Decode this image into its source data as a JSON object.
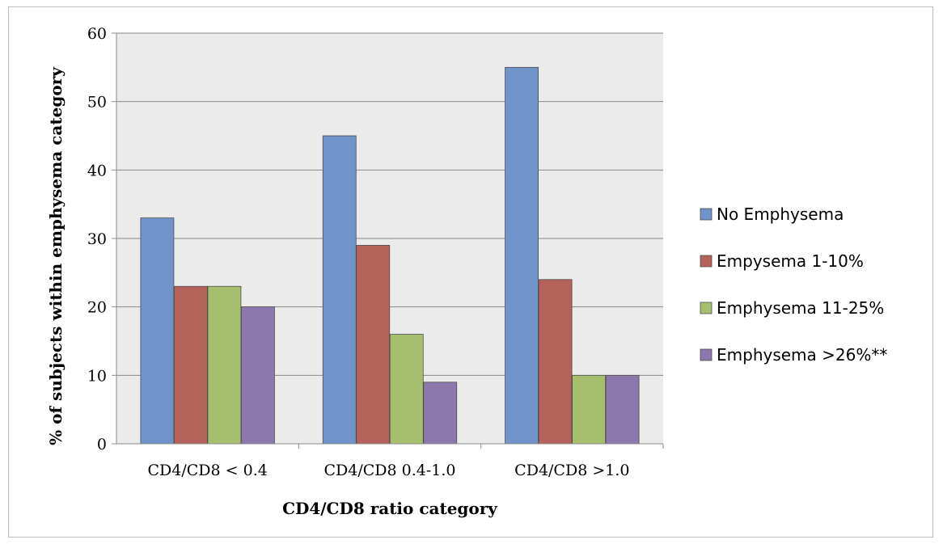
{
  "chart_data": {
    "type": "bar",
    "title": "",
    "xlabel": "CD4/CD8 ratio category",
    "ylabel": "% of subjects within emphysema category",
    "categories": [
      "CD4/CD8 < 0.4",
      "CD4/CD8 0.4-1.0",
      "CD4/CD8 >1.0"
    ],
    "ylim": [
      0,
      60
    ],
    "yticks": [
      0,
      10,
      20,
      30,
      40,
      50,
      60
    ],
    "grid": true,
    "legend_position": "right",
    "series": [
      {
        "name": "No Emphysema",
        "values": [
          33,
          45,
          55
        ],
        "color": "#7094c9"
      },
      {
        "name": "Empysema 1-10%",
        "values": [
          23,
          29,
          24
        ],
        "color": "#b5625a"
      },
      {
        "name": "Emphysema 11-25%",
        "values": [
          23,
          16,
          10
        ],
        "color": "#a6bf6e"
      },
      {
        "name": "Emphysema >26%**",
        "values": [
          20,
          9,
          10
        ],
        "color": "#8c78ad"
      }
    ],
    "plot_background": "#ebebeb"
  }
}
